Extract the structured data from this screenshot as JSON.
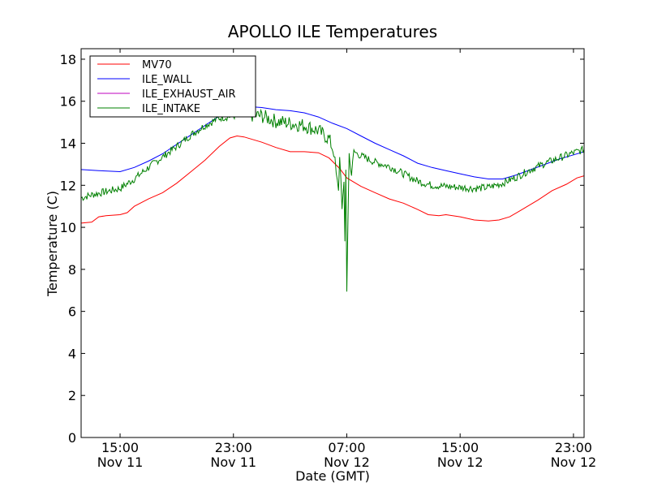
{
  "chart_data": {
    "type": "line",
    "title": "APOLLO ILE Temperatures",
    "xlabel": "Date (GMT)",
    "ylabel": "Temperature (C)",
    "xlim": [
      "2012-11-11T12:15",
      "2012-11-12T23:45"
    ],
    "ylim": [
      0,
      18.5
    ],
    "yticks": [
      "0",
      "2",
      "4",
      "6",
      "8",
      "10",
      "12",
      "14",
      "16",
      "18"
    ],
    "xticks": [
      {
        "at": "2012-11-11T15:00",
        "time": "15:00",
        "date": "Nov 11"
      },
      {
        "at": "2012-11-11T23:00",
        "time": "23:00",
        "date": "Nov 11"
      },
      {
        "at": "2012-11-12T07:00",
        "time": "07:00",
        "date": "Nov 12"
      },
      {
        "at": "2012-11-12T15:00",
        "time": "15:00",
        "date": "Nov 12"
      },
      {
        "at": "2012-11-12T23:00",
        "time": "23:00",
        "date": "Nov 12"
      }
    ],
    "grid": false,
    "legend_position": "top-left",
    "series": [
      {
        "name": "MV70",
        "color": "#ff0000",
        "x": [
          "2012-11-11T12:15",
          "2012-11-11T13:00",
          "2012-11-11T13:30",
          "2012-11-11T14:00",
          "2012-11-11T15:00",
          "2012-11-11T15:30",
          "2012-11-11T16:00",
          "2012-11-11T17:00",
          "2012-11-11T18:00",
          "2012-11-11T19:00",
          "2012-11-11T20:00",
          "2012-11-11T21:00",
          "2012-11-11T22:00",
          "2012-11-11T22:45",
          "2012-11-11T23:15",
          "2012-11-11T23:45",
          "2012-11-12T01:00",
          "2012-11-12T02:00",
          "2012-11-12T03:00",
          "2012-11-12T04:00",
          "2012-11-12T05:00",
          "2012-11-12T05:45",
          "2012-11-12T06:30",
          "2012-11-12T07:00",
          "2012-11-12T08:00",
          "2012-11-12T09:00",
          "2012-11-12T10:00",
          "2012-11-12T11:00",
          "2012-11-12T12:00",
          "2012-11-12T12:45",
          "2012-11-12T13:30",
          "2012-11-12T14:00",
          "2012-11-12T15:00",
          "2012-11-12T16:00",
          "2012-11-12T17:00",
          "2012-11-12T17:45",
          "2012-11-12T18:30",
          "2012-11-12T19:30",
          "2012-11-12T20:30",
          "2012-11-12T21:30",
          "2012-11-12T22:30",
          "2012-11-12T23:15",
          "2012-11-12T23:45"
        ],
        "y": [
          10.2,
          10.25,
          10.5,
          10.55,
          10.6,
          10.7,
          11.0,
          11.35,
          11.65,
          12.1,
          12.65,
          13.2,
          13.85,
          14.25,
          14.35,
          14.3,
          14.05,
          13.8,
          13.6,
          13.6,
          13.55,
          13.3,
          12.8,
          12.35,
          11.95,
          11.65,
          11.35,
          11.15,
          10.85,
          10.6,
          10.55,
          10.6,
          10.5,
          10.35,
          10.3,
          10.35,
          10.5,
          10.9,
          11.3,
          11.75,
          12.05,
          12.35,
          12.45
        ]
      },
      {
        "name": "ILE_WALL",
        "color": "#0000ff",
        "x": [
          "2012-11-11T12:15",
          "2012-11-11T13:30",
          "2012-11-11T15:00",
          "2012-11-11T16:00",
          "2012-11-11T17:00",
          "2012-11-11T18:00",
          "2012-11-11T19:00",
          "2012-11-11T20:00",
          "2012-11-11T21:00",
          "2012-11-11T22:00",
          "2012-11-11T23:00",
          "2012-11-12T00:00",
          "2012-11-12T01:00",
          "2012-11-12T02:00",
          "2012-11-12T03:00",
          "2012-11-12T04:00",
          "2012-11-12T05:00",
          "2012-11-12T06:00",
          "2012-11-12T07:00",
          "2012-11-12T08:00",
          "2012-11-12T09:00",
          "2012-11-12T10:00",
          "2012-11-12T11:00",
          "2012-11-12T12:00",
          "2012-11-12T13:00",
          "2012-11-12T14:00",
          "2012-11-12T15:00",
          "2012-11-12T16:00",
          "2012-11-12T17:00",
          "2012-11-12T18:00",
          "2012-11-12T19:00",
          "2012-11-12T20:00",
          "2012-11-12T21:00",
          "2012-11-12T22:00",
          "2012-11-12T23:00",
          "2012-11-12T23:45"
        ],
        "y": [
          12.75,
          12.7,
          12.65,
          12.85,
          13.15,
          13.5,
          13.95,
          14.4,
          14.85,
          15.3,
          15.6,
          15.75,
          15.7,
          15.6,
          15.55,
          15.45,
          15.25,
          14.95,
          14.7,
          14.35,
          14.0,
          13.7,
          13.4,
          13.05,
          12.85,
          12.7,
          12.55,
          12.4,
          12.3,
          12.3,
          12.5,
          12.75,
          13.0,
          13.25,
          13.45,
          13.6
        ]
      },
      {
        "name": "ILE_EXHAUST_AIR",
        "color": "#bf00bf",
        "x": [],
        "y": []
      },
      {
        "name": "ILE_INTAKE",
        "color": "#008000",
        "x": [
          "2012-11-11T12:15",
          "2012-11-11T13:00",
          "2012-11-11T14:00",
          "2012-11-11T15:00",
          "2012-11-11T16:00",
          "2012-11-11T17:00",
          "2012-11-11T18:00",
          "2012-11-11T19:00",
          "2012-11-11T20:00",
          "2012-11-11T21:00",
          "2012-11-11T22:00",
          "2012-11-11T23:00",
          "2012-11-12T00:00",
          "2012-11-12T01:00",
          "2012-11-12T02:00",
          "2012-11-12T03:00",
          "2012-11-12T04:00",
          "2012-11-12T05:00",
          "2012-11-12T05:45",
          "2012-11-12T06:05",
          "2012-11-12T06:15",
          "2012-11-12T06:25",
          "2012-11-12T06:30",
          "2012-11-12T06:40",
          "2012-11-12T06:48",
          "2012-11-12T06:52",
          "2012-11-12T06:56",
          "2012-11-12T07:00",
          "2012-11-12T07:10",
          "2012-11-12T07:20",
          "2012-11-12T07:30",
          "2012-11-12T08:00",
          "2012-11-12T09:00",
          "2012-11-12T10:00",
          "2012-11-12T11:00",
          "2012-11-12T12:00",
          "2012-11-12T13:00",
          "2012-11-12T14:00",
          "2012-11-12T15:00",
          "2012-11-12T16:00",
          "2012-11-12T17:00",
          "2012-11-12T18:00",
          "2012-11-12T19:00",
          "2012-11-12T20:00",
          "2012-11-12T21:00",
          "2012-11-12T22:00",
          "2012-11-12T23:00",
          "2012-11-12T23:45"
        ],
        "y": [
          11.4,
          11.55,
          11.7,
          11.85,
          12.3,
          12.85,
          13.35,
          13.85,
          14.4,
          14.85,
          15.2,
          15.3,
          15.35,
          15.3,
          15.05,
          14.95,
          14.85,
          14.6,
          14.2,
          13.6,
          12.5,
          11.6,
          13.5,
          11.0,
          12.0,
          9.3,
          12.8,
          7.0,
          13.5,
          12.5,
          13.6,
          13.4,
          13.1,
          12.9,
          12.55,
          12.2,
          12.0,
          11.95,
          11.9,
          11.85,
          11.9,
          12.1,
          12.4,
          12.75,
          13.05,
          13.3,
          13.55,
          13.7
        ]
      }
    ]
  }
}
